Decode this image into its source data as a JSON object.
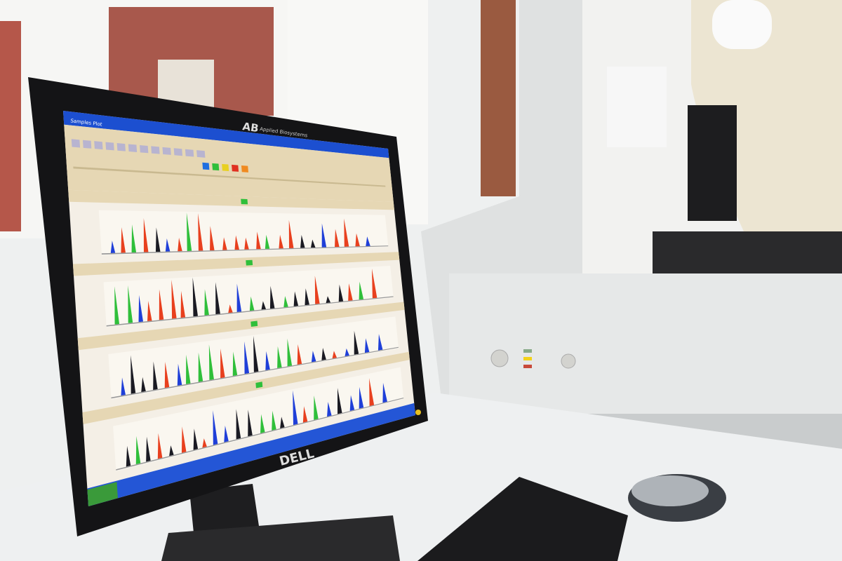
{
  "screen": {
    "window_title": "Samples Plot",
    "start_button": "start",
    "colors": {
      "titlebar": "#1c4fd0",
      "toolbar": "#e6d7b4",
      "plot_bg": "#f4efe6",
      "taskbar": "#2456d6",
      "start": "#3a9a3a"
    },
    "dye_colors": [
      "#1a1a22",
      "#e8401e",
      "#1f3fd8",
      "#2fbf3a"
    ]
  },
  "monitor": {
    "brand": "DELL",
    "bezel_logo": "AB",
    "bezel_text": "Applied Biosystems"
  },
  "scene": {
    "instrument_color": "#e4e6e6",
    "desk_color": "#eef0f1",
    "wall_color": "#f3f3f1"
  }
}
